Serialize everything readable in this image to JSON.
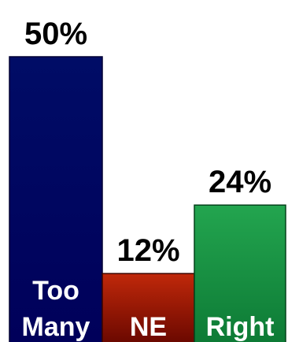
{
  "chart_data": {
    "type": "bar",
    "categories": [
      [
        "Too",
        "Many"
      ],
      [
        "NE"
      ],
      [
        "Right"
      ]
    ],
    "values": [
      50,
      12,
      24
    ],
    "value_labels": [
      "50%",
      "12%",
      "24%"
    ],
    "ylim": [
      0,
      50
    ],
    "grid": false,
    "bar_colors": [
      {
        "top": "#000c66",
        "bottom": "#00005a",
        "stroke": "#000033"
      },
      {
        "top": "#c0280a",
        "bottom": "#6a0800",
        "stroke": "#3a0400"
      },
      {
        "top": "#23a54f",
        "bottom": "#0d7a35",
        "stroke": "#05421b"
      }
    ]
  }
}
